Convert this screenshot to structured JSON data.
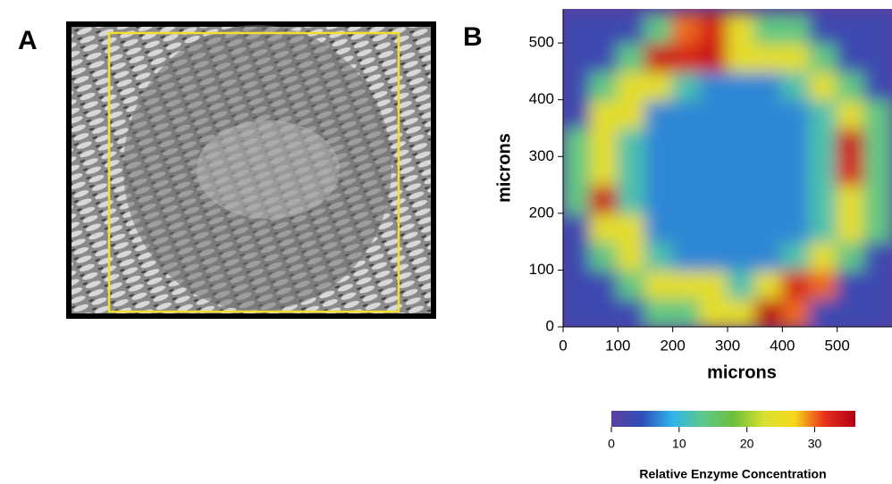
{
  "panels": [
    "A",
    "B"
  ],
  "chart_data": {
    "type": "heatmap",
    "xlabel": "microns",
    "ylabel": "microns",
    "xlim": [
      0,
      600
    ],
    "ylim": [
      0,
      560
    ],
    "xticks": [
      0,
      100,
      200,
      300,
      400,
      500
    ],
    "yticks": [
      0,
      100,
      200,
      300,
      400,
      500
    ],
    "x": [
      25,
      75,
      125,
      175,
      225,
      275,
      325,
      375,
      425,
      475,
      525,
      575
    ],
    "y": [
      25,
      75,
      125,
      175,
      225,
      275,
      325,
      375,
      425,
      475,
      525
    ],
    "z": [
      [
        3,
        3,
        3,
        14,
        14,
        24,
        24,
        35,
        30,
        3,
        3,
        3
      ],
      [
        3,
        3,
        14,
        24,
        24,
        24,
        12,
        24,
        33,
        30,
        3,
        3
      ],
      [
        3,
        14,
        24,
        12,
        7,
        7,
        7,
        7,
        12,
        24,
        14,
        3
      ],
      [
        3,
        24,
        24,
        7,
        7,
        7,
        7,
        7,
        7,
        12,
        24,
        14
      ],
      [
        14,
        34,
        12,
        7,
        7,
        7,
        7,
        7,
        7,
        12,
        24,
        14
      ],
      [
        14,
        24,
        12,
        7,
        7,
        7,
        7,
        7,
        7,
        12,
        33,
        14
      ],
      [
        14,
        24,
        12,
        7,
        7,
        7,
        7,
        7,
        7,
        12,
        34,
        14
      ],
      [
        3,
        24,
        24,
        7,
        7,
        7,
        7,
        7,
        7,
        12,
        24,
        14
      ],
      [
        3,
        14,
        24,
        24,
        12,
        7,
        7,
        7,
        12,
        24,
        14,
        3
      ],
      [
        3,
        3,
        14,
        34,
        33,
        34,
        24,
        24,
        24,
        14,
        3,
        3
      ],
      [
        3,
        3,
        3,
        14,
        30,
        33,
        24,
        14,
        14,
        3,
        3,
        3
      ]
    ],
    "colormap": [
      "#5b3fa0",
      "#2f4fb8",
      "#2fb4ea",
      "#5ec88c",
      "#6cbf3c",
      "#d8e030",
      "#f8d81c",
      "#e8301c",
      "#b00014"
    ],
    "zlim": [
      0,
      36
    ],
    "colorbar_ticks": [
      0,
      10,
      20,
      30
    ],
    "colorbar_label": "Relative Enzyme Concentration"
  }
}
